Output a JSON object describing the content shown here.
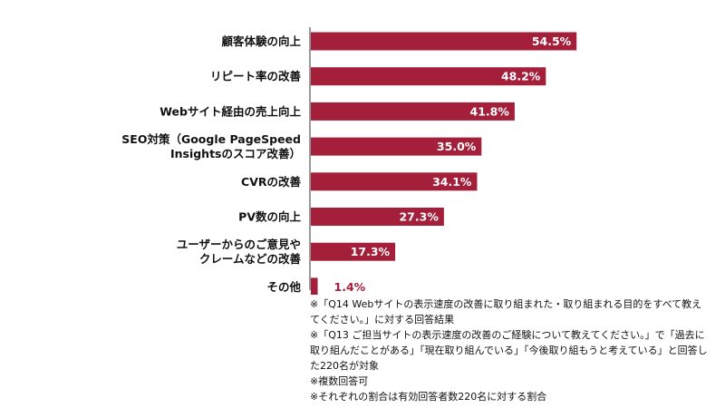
{
  "chart_data": {
    "type": "bar",
    "orientation": "horizontal",
    "categories": [
      [
        "顧客体験の向上"
      ],
      [
        "リピート率の改善"
      ],
      [
        "Webサイト経由の売上向上"
      ],
      [
        "SEO対策（Google PageSpeed",
        "Insightsのスコア改善）"
      ],
      [
        "CVRの改善"
      ],
      [
        "PV数の向上"
      ],
      [
        "ユーザーからのご意見や",
        "クレームなどの改善"
      ],
      [
        "その他"
      ]
    ],
    "values": [
      54.5,
      48.2,
      41.8,
      35.0,
      34.1,
      27.3,
      17.3,
      1.4
    ],
    "value_labels": [
      "54.5%",
      "48.2%",
      "41.8%",
      "35.0%",
      "34.1%",
      "27.3%",
      "17.3%",
      "1.4%"
    ],
    "xlim": [
      0,
      100
    ],
    "grid": false,
    "bar_color": "#a31f3a"
  },
  "notes": [
    "※「Q14 Webサイトの表示速度の改善に取り組まれた・取り組まれる目的をすべて教えてください。」に対する回答結果",
    "※「Q13 ご担当サイトの表示速度の改善のご経験について教えてください。」で「過去に取り組んだことがある」「現在取り組んでいる」「今後取り組もうと考えている」と回答した220名が対象",
    "※複数回答可",
    "※それぞれの割合は有効回答者数220名に対する割合"
  ]
}
